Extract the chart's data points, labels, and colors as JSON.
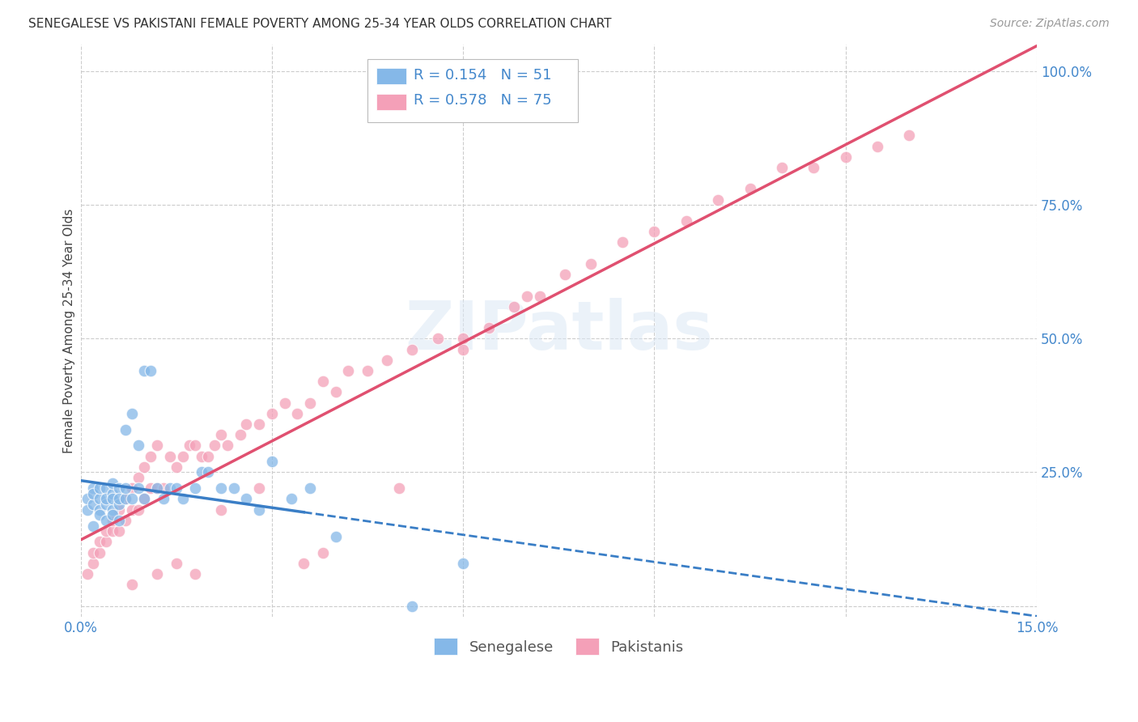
{
  "title": "SENEGALESE VS PAKISTANI FEMALE POVERTY AMONG 25-34 YEAR OLDS CORRELATION CHART",
  "source": "Source: ZipAtlas.com",
  "ylabel": "Female Poverty Among 25-34 Year Olds",
  "xlim": [
    0.0,
    0.15
  ],
  "ylim": [
    -0.02,
    1.05
  ],
  "blue_R": 0.154,
  "blue_N": 51,
  "pink_R": 0.578,
  "pink_N": 75,
  "blue_color": "#85B8E8",
  "pink_color": "#F4A0B8",
  "blue_line_color": "#3A7EC6",
  "pink_line_color": "#E05070",
  "watermark": "ZIPatlas",
  "sen_x": [
    0.001,
    0.001,
    0.002,
    0.002,
    0.002,
    0.002,
    0.003,
    0.003,
    0.003,
    0.003,
    0.004,
    0.004,
    0.004,
    0.004,
    0.005,
    0.005,
    0.005,
    0.005,
    0.005,
    0.006,
    0.006,
    0.006,
    0.006,
    0.007,
    0.007,
    0.007,
    0.008,
    0.008,
    0.009,
    0.009,
    0.01,
    0.01,
    0.011,
    0.012,
    0.013,
    0.014,
    0.015,
    0.016,
    0.018,
    0.019,
    0.02,
    0.022,
    0.024,
    0.026,
    0.028,
    0.03,
    0.033,
    0.036,
    0.04,
    0.052,
    0.06
  ],
  "sen_y": [
    0.2,
    0.18,
    0.22,
    0.15,
    0.19,
    0.21,
    0.2,
    0.18,
    0.22,
    0.17,
    0.19,
    0.22,
    0.16,
    0.2,
    0.21,
    0.18,
    0.23,
    0.2,
    0.17,
    0.22,
    0.19,
    0.2,
    0.16,
    0.33,
    0.2,
    0.22,
    0.36,
    0.2,
    0.3,
    0.22,
    0.2,
    0.44,
    0.44,
    0.22,
    0.2,
    0.22,
    0.22,
    0.2,
    0.22,
    0.25,
    0.25,
    0.22,
    0.22,
    0.2,
    0.18,
    0.27,
    0.2,
    0.22,
    0.13,
    0.0,
    0.08
  ],
  "pak_x": [
    0.001,
    0.002,
    0.002,
    0.003,
    0.003,
    0.004,
    0.004,
    0.005,
    0.005,
    0.006,
    0.006,
    0.007,
    0.007,
    0.008,
    0.008,
    0.009,
    0.009,
    0.01,
    0.01,
    0.011,
    0.011,
    0.012,
    0.012,
    0.013,
    0.014,
    0.015,
    0.016,
    0.017,
    0.018,
    0.019,
    0.02,
    0.021,
    0.022,
    0.023,
    0.025,
    0.026,
    0.028,
    0.03,
    0.032,
    0.034,
    0.036,
    0.038,
    0.04,
    0.042,
    0.045,
    0.048,
    0.052,
    0.056,
    0.06,
    0.064,
    0.068,
    0.072,
    0.076,
    0.08,
    0.085,
    0.09,
    0.095,
    0.1,
    0.105,
    0.11,
    0.115,
    0.12,
    0.125,
    0.13,
    0.06,
    0.07,
    0.038,
    0.05,
    0.028,
    0.035,
    0.022,
    0.018,
    0.015,
    0.012,
    0.008
  ],
  "pak_y": [
    0.06,
    0.08,
    0.1,
    0.1,
    0.12,
    0.12,
    0.14,
    0.14,
    0.16,
    0.14,
    0.18,
    0.16,
    0.2,
    0.18,
    0.22,
    0.18,
    0.24,
    0.2,
    0.26,
    0.22,
    0.28,
    0.22,
    0.3,
    0.22,
    0.28,
    0.26,
    0.28,
    0.3,
    0.3,
    0.28,
    0.28,
    0.3,
    0.32,
    0.3,
    0.32,
    0.34,
    0.34,
    0.36,
    0.38,
    0.36,
    0.38,
    0.42,
    0.4,
    0.44,
    0.44,
    0.46,
    0.48,
    0.5,
    0.5,
    0.52,
    0.56,
    0.58,
    0.62,
    0.64,
    0.68,
    0.7,
    0.72,
    0.76,
    0.78,
    0.82,
    0.82,
    0.84,
    0.86,
    0.88,
    0.48,
    0.58,
    0.1,
    0.22,
    0.22,
    0.08,
    0.18,
    0.06,
    0.08,
    0.06,
    0.04
  ]
}
